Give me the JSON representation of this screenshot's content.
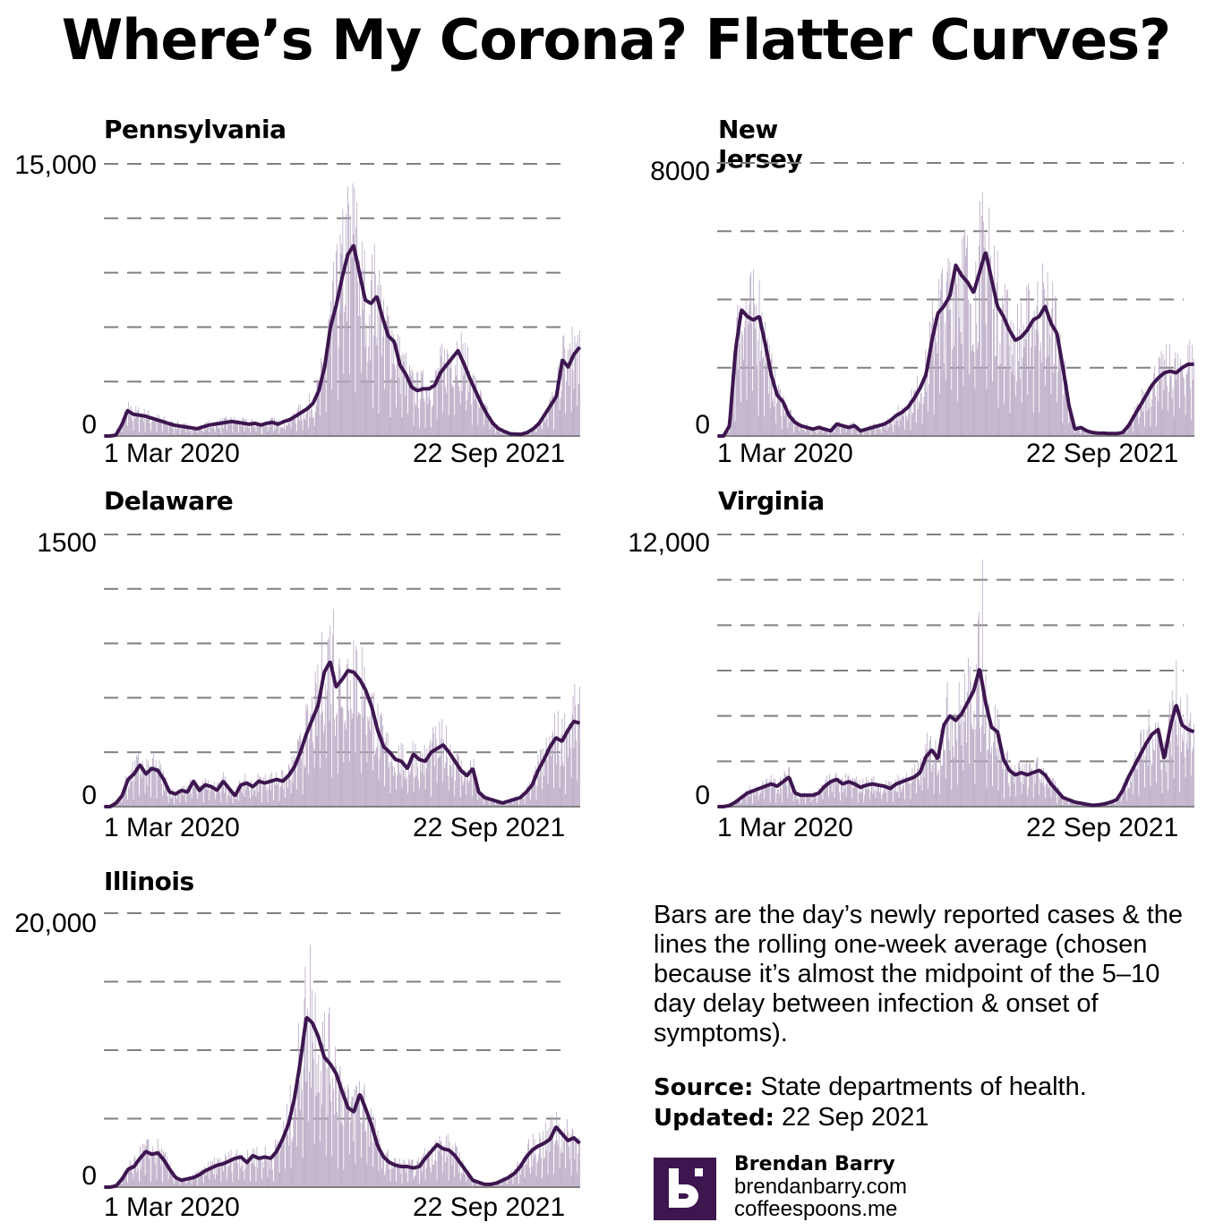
{
  "title": "Where’s My Corona? Flatter Curves?",
  "colors": {
    "bar": "#b9a8c4",
    "line": "#3d1650",
    "grid": "#808080",
    "axis": "#808080",
    "brand": "#3d1650"
  },
  "note": "Bars are the day’s newly reported cases & the lines the rolling one-week average (chosen because it’s almost the midpoint of the 5–10 day delay be­tween infection & onset of symptoms).",
  "source_label": "Source:",
  "source_text": " State departments of health.",
  "updated_label": "Updated:",
  "updated_text": " 22 Sep 2021",
  "brand": {
    "name": "Brendan Barry",
    "site1": "brendanbarry.com",
    "site2": "coffeespoons.me",
    "logo_letter": "b"
  },
  "chart_data": [
    {
      "type": "bar+line",
      "state": "Pennsylvania",
      "ymax_label": "15,000",
      "ymin_label": "0",
      "ylim": [
        0,
        15000
      ],
      "grid_step": 3000,
      "x_start_label": "1 Mar 2020",
      "x_end_label": "22 Sep 2021",
      "series_note": "weekly rolling average, approx. weekly samples from 1 Mar 2020 to 22 Sep 2021",
      "rolling_avg": [
        0,
        0,
        50,
        600,
        1400,
        1200,
        1150,
        1100,
        1000,
        900,
        800,
        700,
        600,
        550,
        500,
        450,
        400,
        500,
        600,
        650,
        700,
        750,
        800,
        750,
        700,
        650,
        700,
        600,
        700,
        750,
        650,
        800,
        900,
        1100,
        1300,
        1500,
        1800,
        2500,
        3800,
        6000,
        7200,
        8700,
        10000,
        10500,
        9000,
        7500,
        7300,
        7700,
        6500,
        5500,
        5200,
        3900,
        3400,
        2700,
        2500,
        2600,
        2600,
        2800,
        3500,
        3900,
        4300,
        4700,
        4000,
        3200,
        2500,
        1800,
        1200,
        700,
        400,
        250,
        120,
        100,
        100,
        200,
        400,
        700,
        1200,
        1700,
        2200,
        4200,
        3800,
        4500,
        4900
      ],
      "bar_peak_max": 12900
    },
    {
      "type": "bar+line",
      "state": "New Jersey",
      "ymax_label": "8000",
      "ymin_label": "0",
      "ylim": [
        0,
        8000
      ],
      "grid_step": 2000,
      "x_start_label": "1 Mar 2020",
      "x_end_label": "22 Sep 2021",
      "rolling_avg": [
        0,
        0,
        300,
        2500,
        3700,
        3500,
        3400,
        3500,
        2700,
        1800,
        1200,
        1000,
        600,
        400,
        300,
        250,
        200,
        250,
        200,
        150,
        350,
        300,
        250,
        300,
        150,
        200,
        250,
        300,
        350,
        450,
        600,
        700,
        850,
        1100,
        1400,
        1800,
        2800,
        3600,
        3800,
        4100,
        5000,
        4700,
        4500,
        4200,
        4800,
        5400,
        4600,
        3800,
        3500,
        3100,
        2800,
        2900,
        3100,
        3400,
        3500,
        3800,
        3300,
        3000,
        2000,
        900,
        200,
        250,
        150,
        100,
        80,
        80,
        70,
        70,
        100,
        300,
        600,
        900,
        1200,
        1500,
        1700,
        1850,
        1900,
        1850,
        2000,
        2100,
        2100
      ],
      "bar_peak_max": 6700
    },
    {
      "type": "bar+line",
      "state": "Delaware",
      "ymax_label": "1500",
      "ymin_label": "0",
      "ylim": [
        0,
        1500
      ],
      "grid_step": 300,
      "x_start_label": "1 Mar 2020",
      "x_end_label": "22 Sep 2021",
      "rolling_avg": [
        0,
        0,
        20,
        60,
        150,
        180,
        230,
        180,
        210,
        200,
        150,
        80,
        70,
        90,
        80,
        140,
        90,
        120,
        110,
        90,
        140,
        100,
        60,
        120,
        130,
        110,
        140,
        130,
        140,
        150,
        140,
        170,
        220,
        300,
        400,
        480,
        560,
        740,
        800,
        660,
        700,
        750,
        740,
        700,
        640,
        550,
        420,
        330,
        300,
        260,
        250,
        210,
        290,
        260,
        250,
        300,
        320,
        340,
        300,
        250,
        200,
        170,
        210,
        80,
        50,
        40,
        30,
        20,
        30,
        40,
        50,
        80,
        120,
        200,
        260,
        330,
        380,
        360,
        420,
        470,
        460
      ],
      "bar_peak_max": 1090
    },
    {
      "type": "bar+line",
      "state": "Virginia",
      "ymax_label": "12,000",
      "ymin_label": "0",
      "ylim": [
        0,
        12000
      ],
      "grid_step": 2000,
      "x_start_label": "1 Mar 2020",
      "x_end_label": "22 Sep 2021",
      "rolling_avg": [
        0,
        0,
        50,
        200,
        400,
        600,
        700,
        800,
        900,
        1000,
        900,
        1100,
        1300,
        600,
        500,
        500,
        500,
        600,
        900,
        1100,
        1200,
        1000,
        1100,
        1000,
        850,
        950,
        1000,
        950,
        900,
        800,
        1000,
        1100,
        1200,
        1300,
        1500,
        2200,
        2500,
        2100,
        3600,
        4000,
        3800,
        4100,
        4600,
        5100,
        6100,
        4600,
        3500,
        3300,
        2100,
        1600,
        1400,
        1500,
        1400,
        1500,
        1600,
        1400,
        1000,
        700,
        400,
        300,
        200,
        150,
        100,
        60,
        80,
        120,
        200,
        300,
        700,
        1300,
        1800,
        2300,
        2800,
        3200,
        3400,
        2100,
        3500,
        4500,
        3600,
        3400,
        3300
      ],
      "bar_peak_max": 10900
    },
    {
      "type": "bar+line",
      "state": "Illinois",
      "ymax_label": "20,000",
      "ymin_label": "0",
      "ylim": [
        0,
        20000
      ],
      "grid_step": 5000,
      "x_start_label": "1 Mar 2020",
      "x_end_label": "22 Sep 2021",
      "rolling_avg": [
        0,
        0,
        100,
        600,
        1300,
        1500,
        2100,
        2600,
        2400,
        2500,
        2000,
        1300,
        700,
        500,
        600,
        700,
        900,
        1200,
        1400,
        1600,
        1700,
        1900,
        2100,
        2200,
        1800,
        2300,
        2100,
        2200,
        2100,
        2600,
        3500,
        4600,
        6500,
        9200,
        12400,
        12000,
        11000,
        9500,
        9000,
        8300,
        7000,
        5800,
        5500,
        6800,
        5700,
        4500,
        3000,
        2200,
        1800,
        1600,
        1500,
        1500,
        1400,
        1500,
        2100,
        2600,
        3100,
        2800,
        2700,
        2300,
        1700,
        1100,
        500,
        350,
        200,
        200,
        300,
        500,
        700,
        1000,
        1500,
        2200,
        2700,
        3000,
        3200,
        3500,
        4400,
        3900,
        3400,
        3600,
        3200
      ],
      "bar_peak_max": 17700
    }
  ]
}
